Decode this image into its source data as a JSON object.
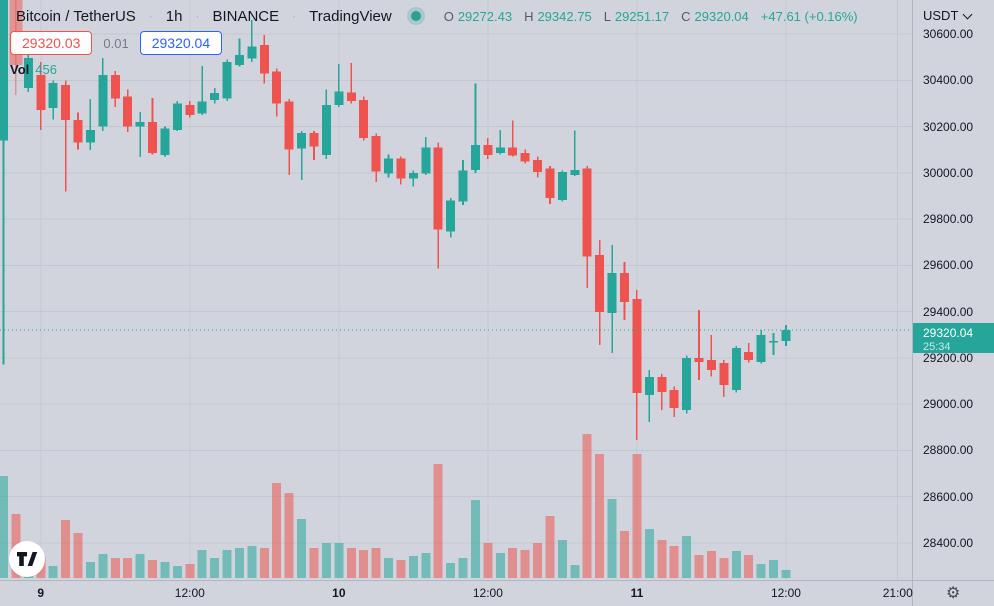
{
  "header": {
    "symbol": "Bitcoin / TetherUS",
    "interval": "1h",
    "exchange": "BINANCE",
    "brand": "TradingView",
    "sep": "·",
    "ohlc": {
      "o_label": "O",
      "o": "29272.43",
      "h_label": "H",
      "h": "29342.75",
      "l_label": "L",
      "l": "29251.17",
      "c_label": "C",
      "c": "29320.04",
      "change": "+47.61 (+0.16%)"
    },
    "bid": "29320.03",
    "spread": "0.01",
    "ask": "29320.04",
    "vol_label": "Vol",
    "vol_value": "456"
  },
  "price_axis": {
    "currency": "USDT",
    "ticks": [
      "30600.00",
      "30400.00",
      "30200.00",
      "30000.00",
      "29800.00",
      "29600.00",
      "29400.00",
      "29200.00",
      "29000.00",
      "28800.00",
      "28600.00",
      "28400.00"
    ],
    "last_price": "29320.04",
    "countdown": "25:34"
  },
  "time_axis": {
    "ticks": [
      {
        "slot": 3,
        "label": "9",
        "bold": true
      },
      {
        "slot": 15,
        "label": "12:00",
        "bold": false
      },
      {
        "slot": 27,
        "label": "10",
        "bold": true
      },
      {
        "slot": 39,
        "label": "12:00",
        "bold": false
      },
      {
        "slot": 51,
        "label": "11",
        "bold": true
      },
      {
        "slot": 63,
        "label": "12:00",
        "bold": false
      },
      {
        "slot": 72,
        "label": "21:00",
        "bold": false
      }
    ]
  },
  "colors": {
    "background": "#d1d4dc",
    "grid": "#c3c7d1",
    "text_primary": "#131722",
    "text_muted": "#5d616e",
    "up": "#26a69a",
    "down": "#ef5350",
    "volume_up": "rgba(38,166,154,0.55)",
    "volume_down": "rgba(239,83,80,0.55)",
    "ask_blue": "#2962ff",
    "label_bg": "#26a69a",
    "axis_border": "#b3b6c0"
  },
  "chart_data": {
    "type": "candlestick",
    "title": "Bitcoin / TetherUS 1h BINANCE",
    "symbol": "BTC/USDT",
    "exchange": "BINANCE",
    "interval": "1h",
    "ylabel": "Price (USDT)",
    "ylim": [
      28400,
      30600
    ],
    "price_grid_step": 200,
    "last_close": 29320.04,
    "current_candle": {
      "o": 29272.43,
      "h": 29342.75,
      "l": 29251.17,
      "c": 29320.04,
      "volume": 456
    },
    "faded_index": 1,
    "volume_unit": "relative px height (only current value 456 shown on chart)",
    "candles": [
      [
        30140,
        30760,
        29170,
        30755,
        102
      ],
      [
        30750,
        30760,
        30336,
        30466,
        64
      ],
      [
        30366,
        30530,
        30350,
        30496,
        36
      ],
      [
        30423,
        30480,
        30185,
        30271,
        21
      ],
      [
        30280,
        30400,
        30230,
        30388,
        12
      ],
      [
        30379,
        30400,
        29920,
        30228,
        58
      ],
      [
        30228,
        30260,
        30100,
        30130,
        45
      ],
      [
        30130,
        30320,
        30098,
        30185,
        16
      ],
      [
        30199,
        30496,
        30180,
        30423,
        24
      ],
      [
        30423,
        30440,
        30285,
        30322,
        20
      ],
      [
        30330,
        30360,
        30176,
        30200,
        20
      ],
      [
        30200,
        30263,
        30068,
        30220,
        24
      ],
      [
        30220,
        30323,
        30080,
        30086,
        18
      ],
      [
        30077,
        30200,
        30070,
        30192,
        16
      ],
      [
        30185,
        30310,
        30180,
        30300,
        12
      ],
      [
        30293,
        30310,
        30240,
        30250,
        14
      ],
      [
        30257,
        30462,
        30250,
        30308,
        28
      ],
      [
        30315,
        30366,
        30300,
        30345,
        20
      ],
      [
        30322,
        30490,
        30310,
        30480,
        28
      ],
      [
        30466,
        30580,
        30460,
        30509,
        30
      ],
      [
        30495,
        30660,
        30480,
        30545,
        32
      ],
      [
        30552,
        30595,
        30387,
        30430,
        30
      ],
      [
        30437,
        30450,
        30243,
        30300,
        95
      ],
      [
        30308,
        30320,
        29990,
        30100,
        85
      ],
      [
        30106,
        30180,
        29968,
        30171,
        59
      ],
      [
        30171,
        30180,
        30055,
        30113,
        30
      ],
      [
        30077,
        30360,
        30060,
        30293,
        35
      ],
      [
        30293,
        30470,
        30285,
        30352,
        35
      ],
      [
        30348,
        30475,
        30300,
        30310,
        30
      ],
      [
        30315,
        30330,
        30140,
        30150,
        28
      ],
      [
        30160,
        30170,
        29960,
        30005,
        30
      ],
      [
        29997,
        30080,
        29980,
        30062,
        20
      ],
      [
        30062,
        30070,
        29950,
        29975,
        18
      ],
      [
        29975,
        30010,
        29940,
        30000,
        22
      ],
      [
        29997,
        30155,
        29990,
        30110,
        25
      ],
      [
        30110,
        30130,
        29585,
        29755,
        114
      ],
      [
        29745,
        29890,
        29720,
        29880,
        15
      ],
      [
        29875,
        30055,
        29860,
        30010,
        20
      ],
      [
        30012,
        30385,
        30000,
        30120,
        78
      ],
      [
        30120,
        30150,
        30060,
        30077,
        35
      ],
      [
        30085,
        30185,
        30080,
        30110,
        25
      ],
      [
        30110,
        30225,
        30070,
        30075,
        30
      ],
      [
        30086,
        30100,
        30040,
        30048,
        28
      ],
      [
        30055,
        30070,
        29980,
        30004,
        35
      ],
      [
        30019,
        30030,
        29865,
        29890,
        62
      ],
      [
        29882,
        30010,
        29875,
        30004,
        38
      ],
      [
        29990,
        30182,
        29985,
        30012,
        13
      ],
      [
        30019,
        30030,
        29502,
        29637,
        144
      ],
      [
        29645,
        29709,
        29256,
        29398,
        124
      ],
      [
        29394,
        29688,
        29221,
        29567,
        79
      ],
      [
        29567,
        29614,
        29364,
        29441,
        47
      ],
      [
        29454,
        29493,
        28845,
        29048,
        124
      ],
      [
        29039,
        29147,
        28923,
        29117,
        49
      ],
      [
        29117,
        29130,
        28975,
        29052,
        38
      ],
      [
        29061,
        29075,
        28945,
        28983,
        32
      ],
      [
        28975,
        29210,
        28960,
        29199,
        42
      ],
      [
        29199,
        29407,
        29104,
        29182,
        23
      ],
      [
        29190,
        29298,
        29120,
        29147,
        27
      ],
      [
        29177,
        29190,
        29030,
        29082,
        20
      ],
      [
        29061,
        29250,
        29050,
        29242,
        27
      ],
      [
        29225,
        29264,
        29180,
        29190,
        23
      ],
      [
        29182,
        29320,
        29175,
        29298,
        14
      ],
      [
        29268,
        29307,
        29212,
        29272,
        18
      ],
      [
        29272.43,
        29342.75,
        29251.17,
        29320.04,
        8
      ]
    ]
  }
}
